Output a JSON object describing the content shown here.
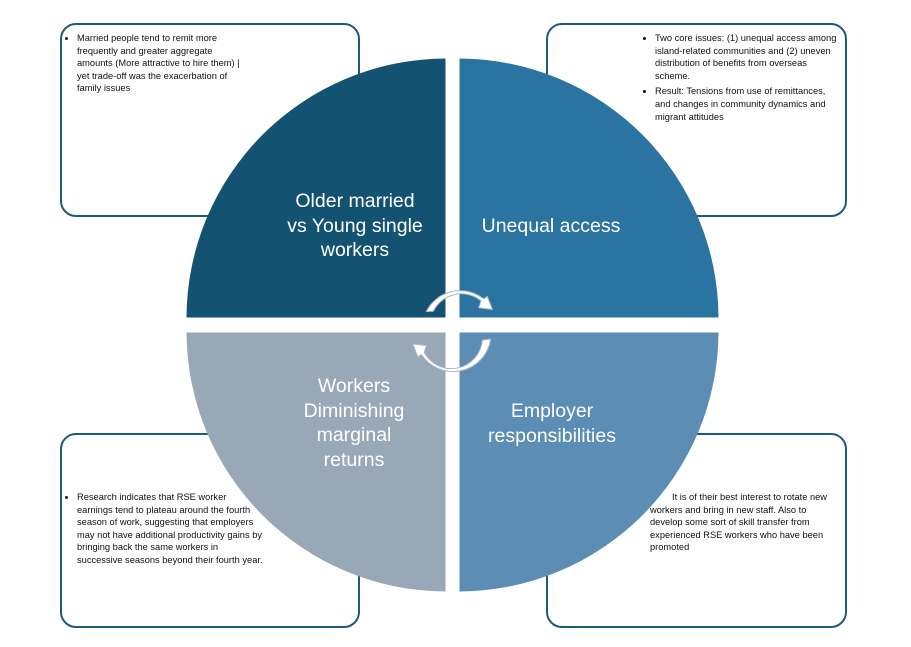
{
  "colors": {
    "box_border": "#1d5a7d",
    "q_top_left": "#145272",
    "q_top_right": "#2b73a0",
    "q_bottom_left": "#98a8b7",
    "q_bottom_right": "#5b8db5",
    "arrow_fill": "#ffffff",
    "arrow_outline": "#a9b7c4"
  },
  "quadrants": {
    "top_left": {
      "lines": [
        "Older married",
        "vs Young single",
        "workers"
      ]
    },
    "top_right": {
      "lines": [
        "Unequal access"
      ]
    },
    "bottom_left": {
      "lines": [
        "Workers",
        "Diminishing",
        "marginal",
        "returns"
      ]
    },
    "bottom_right": {
      "lines": [
        "Employer",
        "responsibilities"
      ]
    }
  },
  "boxes": {
    "top_left": {
      "bullets": [
        "Married people tend to remit more frequently and greater aggregate amounts (More attractive to hire them) | yet trade-off was the exacerbation of family issues"
      ]
    },
    "top_right": {
      "bullets": [
        "Two core issues: (1) unequal access among island-related communities and (2) uneven distribution of benefits from overseas scheme.",
        "Result: Tensions from use of remittances, and changes in community dynamics and migrant attitudes"
      ]
    },
    "bottom_left": {
      "bullets": [
        "Research indicates that RSE worker earnings tend to plateau around the fourth season of work, suggesting that employers may not have additional productivity gains by bringing back the same workers in successive seasons beyond their fourth year."
      ]
    },
    "bottom_right": {
      "text": "It is of their best interest to rotate new workers and bring in new staff. Also to develop some sort of skill transfer from experienced RSE workers who have been promoted"
    }
  },
  "icons": {
    "center": "circular-arrows-icon"
  }
}
